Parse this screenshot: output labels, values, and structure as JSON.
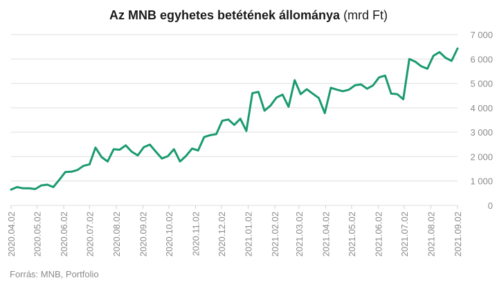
{
  "chart_data": {
    "type": "line",
    "title": "Az MNB egyhetes betétének állománya",
    "title_unit": "(mrd Ft)",
    "xlabel": "",
    "ylabel": "",
    "ylim": [
      0,
      7000
    ],
    "y_ticks": [
      0,
      1000,
      2000,
      3000,
      4000,
      5000,
      6000,
      7000
    ],
    "y_tick_labels": [
      "0",
      "1 000",
      "2 000",
      "3 000",
      "4 000",
      "5 000",
      "6 000",
      "7 000"
    ],
    "x_tick_labels": [
      "2020.04.02",
      "2020.05.02",
      "2020.06.02",
      "2020.07.02",
      "2020.08.02",
      "2020.09.02",
      "2020.10.02",
      "2020.11.02",
      "2020.12.02",
      "2021.01.02",
      "2021.02.02",
      "2021.03.02",
      "2021.04.02",
      "2021.05.02",
      "2021.06.02",
      "2021.07.02",
      "2021.08.02",
      "2021.09.02"
    ],
    "grid": true,
    "y_axis_position": "right",
    "line_color": "#1a9a6f",
    "x": [
      "2020.04.02",
      "2020.04.09",
      "2020.04.16",
      "2020.04.23",
      "2020.04.30",
      "2020.05.07",
      "2020.05.14",
      "2020.05.21",
      "2020.05.28",
      "2020.06.04",
      "2020.06.11",
      "2020.06.18",
      "2020.06.25",
      "2020.07.02",
      "2020.07.09",
      "2020.07.16",
      "2020.07.23",
      "2020.07.30",
      "2020.08.06",
      "2020.08.13",
      "2020.08.20",
      "2020.08.27",
      "2020.09.03",
      "2020.09.10",
      "2020.09.17",
      "2020.09.24",
      "2020.10.01",
      "2020.10.08",
      "2020.10.15",
      "2020.10.22",
      "2020.10.29",
      "2020.11.05",
      "2020.11.12",
      "2020.11.19",
      "2020.11.26",
      "2020.12.03",
      "2020.12.10",
      "2020.12.17",
      "2020.12.24",
      "2020.12.31",
      "2021.01.07",
      "2021.01.14",
      "2021.01.21",
      "2021.01.28",
      "2021.02.04",
      "2021.02.11",
      "2021.02.18",
      "2021.02.25",
      "2021.03.04",
      "2021.03.11",
      "2021.03.18",
      "2021.03.25",
      "2021.04.01",
      "2021.04.08",
      "2021.04.15",
      "2021.04.22",
      "2021.04.29",
      "2021.05.06",
      "2021.05.13",
      "2021.05.20",
      "2021.05.27",
      "2021.06.03",
      "2021.06.10",
      "2021.06.17",
      "2021.06.24",
      "2021.07.01",
      "2021.07.08",
      "2021.07.15",
      "2021.07.22",
      "2021.07.29",
      "2021.08.05",
      "2021.08.12",
      "2021.08.19",
      "2021.08.26",
      "2021.09.02"
    ],
    "values": [
      650,
      750,
      700,
      700,
      670,
      820,
      850,
      750,
      1050,
      1370,
      1380,
      1450,
      1620,
      1680,
      2370,
      1980,
      1800,
      2300,
      2280,
      2460,
      2200,
      2050,
      2390,
      2490,
      2200,
      1920,
      2020,
      2300,
      1800,
      2030,
      2330,
      2250,
      2800,
      2880,
      2920,
      3470,
      3520,
      3300,
      3550,
      3050,
      4600,
      4650,
      3880,
      4090,
      4420,
      4540,
      4040,
      5130,
      4560,
      4760,
      4580,
      4400,
      3780,
      4820,
      4740,
      4680,
      4740,
      4920,
      4960,
      4780,
      4920,
      5250,
      5320,
      4580,
      4560,
      4350,
      6000,
      5890,
      5700,
      5600,
      6130,
      6280,
      6050,
      5920,
      6430
    ],
    "source": "Forrás: MNB, Portfolio"
  }
}
